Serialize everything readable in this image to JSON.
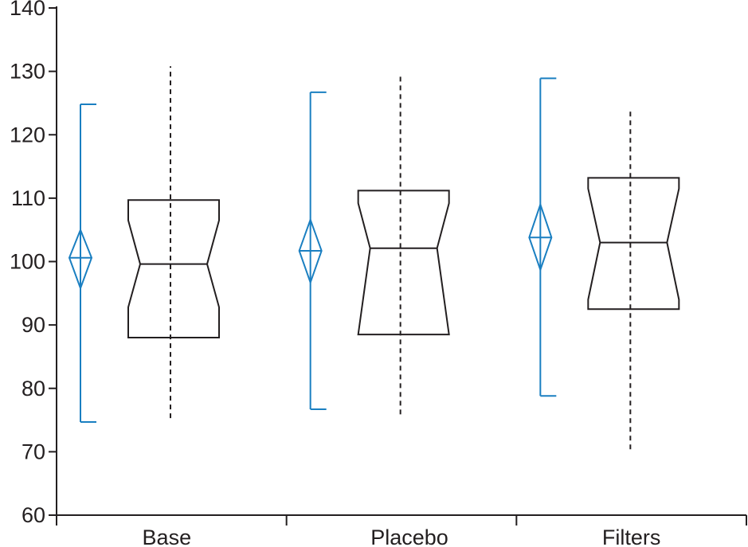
{
  "chart_data": {
    "type": "box",
    "categories": [
      "Base",
      "Placebo",
      "Filters"
    ],
    "ylim": [
      60,
      140
    ],
    "yticks": [
      60,
      70,
      80,
      90,
      100,
      110,
      120,
      130,
      140
    ],
    "box_color": "#231f20",
    "mean_color": "#1a7fc1",
    "boxes": [
      {
        "whisker_low": 75.3,
        "q1": 88,
        "notch_low": 92.8,
        "median": 99.6,
        "notch_high": 106.5,
        "q3": 109.7,
        "whisker_high": 130.8
      },
      {
        "whisker_low": 75.9,
        "q1": 88.5,
        "notch_low": 88.5,
        "median": 102.1,
        "notch_high": 109.2,
        "q3": 111.2,
        "whisker_high": 129.4
      },
      {
        "whisker_low": 70.4,
        "q1": 92.5,
        "notch_low": 94,
        "median": 103,
        "notch_high": 111.5,
        "q3": 113.2,
        "whisker_high": 123.8
      }
    ],
    "means": [
      {
        "low": 74.7,
        "ci_low": 95.8,
        "mean": 100.6,
        "ci_high": 105,
        "high": 124.8
      },
      {
        "low": 76.7,
        "ci_low": 96.7,
        "mean": 101.7,
        "ci_high": 106.6,
        "high": 126.7
      },
      {
        "low": 78.8,
        "ci_low": 98.7,
        "mean": 103.8,
        "ci_high": 109,
        "high": 128.9
      }
    ]
  }
}
